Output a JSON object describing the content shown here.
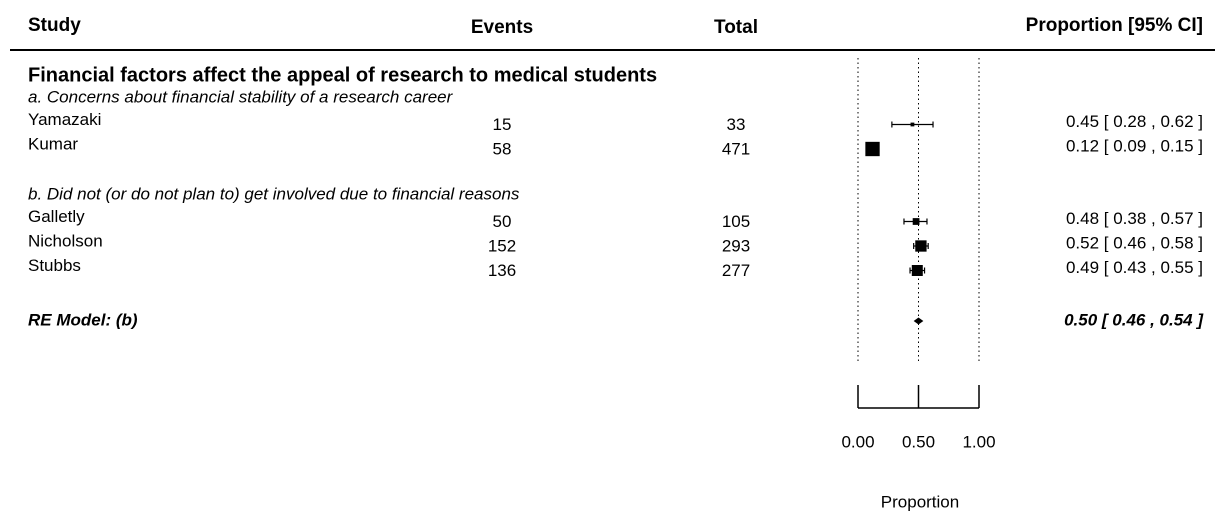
{
  "chart_data": {
    "type": "forest",
    "headers": {
      "study": "Study",
      "events": "Events",
      "total": "Total",
      "estimate": "Proportion [95% CI]"
    },
    "group_title": "Financial factors affect the appeal of research to medical students",
    "subgroups": [
      {
        "label": "a. Concerns about financial stability of a research career",
        "studies": [
          {
            "name": "Yamazaki",
            "events": 15,
            "total": 33,
            "value": 0.45,
            "lower": 0.28,
            "upper": 0.62,
            "label": "0.45 [ 0.28 , 0.62 ]"
          },
          {
            "name": "Kumar",
            "events": 58,
            "total": 471,
            "value": 0.12,
            "lower": 0.09,
            "upper": 0.15,
            "label": "0.12 [ 0.09 , 0.15 ]"
          }
        ]
      },
      {
        "label": "b. Did not (or do not plan to) get involved due to financial reasons",
        "studies": [
          {
            "name": "Galletly",
            "events": 50,
            "total": 105,
            "value": 0.48,
            "lower": 0.38,
            "upper": 0.57,
            "label": "0.48 [ 0.38 , 0.57 ]"
          },
          {
            "name": "Nicholson",
            "events": 152,
            "total": 293,
            "value": 0.52,
            "lower": 0.46,
            "upper": 0.58,
            "label": "0.52 [ 0.46 , 0.58 ]"
          },
          {
            "name": "Stubbs",
            "events": 136,
            "total": 277,
            "value": 0.49,
            "lower": 0.43,
            "upper": 0.55,
            "label": "0.49 [ 0.43 , 0.55 ]"
          }
        ]
      }
    ],
    "summary": {
      "name": "RE Model: (b)",
      "value": 0.5,
      "lower": 0.46,
      "upper": 0.54,
      "label": "0.50 [ 0.46 , 0.54 ]"
    },
    "xlim": [
      0,
      1
    ],
    "xticks": [
      {
        "value": 0,
        "label": "0.00"
      },
      {
        "value": 0.5,
        "label": "0.50"
      },
      {
        "value": 1,
        "label": "1.00"
      }
    ],
    "xlabel": "Proportion"
  }
}
